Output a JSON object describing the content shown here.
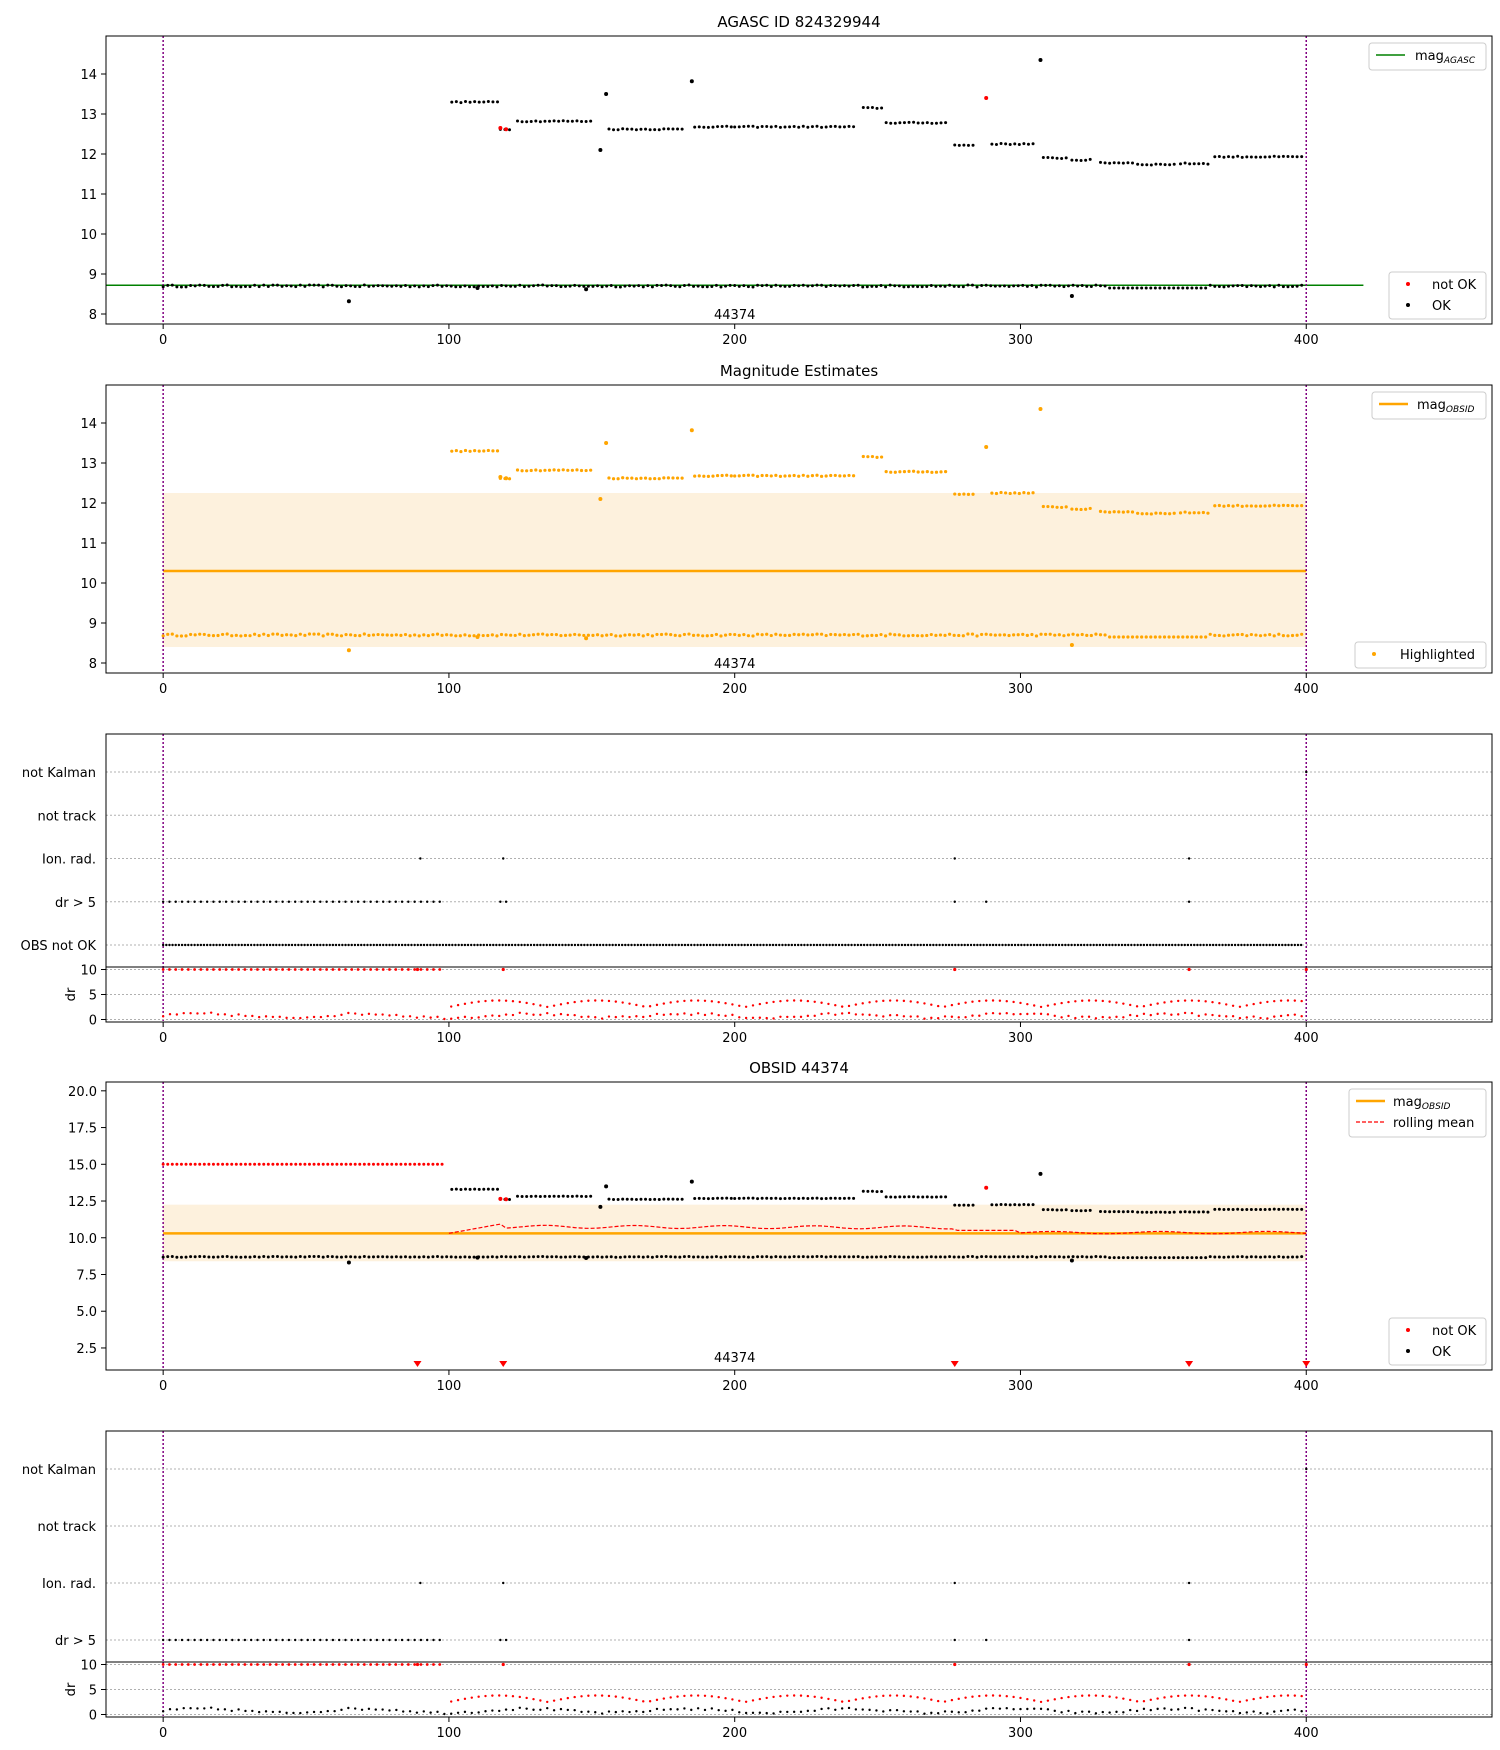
{
  "figure": {
    "title_top": "AGASC ID 824329944",
    "title_mag": "Magnitude Estimates",
    "title_obsid": "OBSID 44374"
  },
  "colors": {
    "ok": "#000000",
    "not_ok": "#ff0000",
    "agasc_line": "#008000",
    "obsid_line": "#ffa500",
    "band": "#fdf1dd",
    "vline": "#800080",
    "grid": "#b0b0b0"
  },
  "chart_data": [
    {
      "id": "agasc",
      "type": "scatter",
      "title": "AGASC ID 824329944",
      "xlim": [
        -20,
        465
      ],
      "ylim": [
        7.75,
        14.95
      ],
      "yticks": [
        8,
        9,
        10,
        11,
        12,
        13,
        14
      ],
      "xticks": [
        0,
        100,
        200,
        300,
        400
      ],
      "obsid_label": "44374",
      "vlines": [
        0,
        400
      ],
      "hlines": [
        {
          "name": "mag_AGASC",
          "y": 8.72,
          "x": [
            -20,
            420
          ]
        }
      ],
      "legend_upper": [
        "mag",
        "AGASC"
      ],
      "legend_lower": [
        "not OK",
        "OK"
      ],
      "not_ok_points": [
        [
          118,
          12.65
        ],
        [
          120,
          12.62
        ],
        [
          288,
          13.4
        ]
      ],
      "outliers": [
        [
          65,
          8.32
        ],
        [
          110,
          8.65
        ],
        [
          148,
          8.62
        ],
        [
          153,
          12.1
        ],
        [
          155,
          13.5
        ],
        [
          185,
          13.82
        ],
        [
          307,
          14.35
        ],
        [
          318,
          8.45
        ]
      ]
    },
    {
      "id": "mag_estimates",
      "type": "scatter",
      "title": "Magnitude Estimates",
      "xlim": [
        -20,
        465
      ],
      "ylim": [
        7.75,
        14.95
      ],
      "yticks": [
        8,
        9,
        10,
        11,
        12,
        13,
        14
      ],
      "xticks": [
        0,
        100,
        200,
        300,
        400
      ],
      "obsid_label": "44374",
      "vlines": [
        0,
        400
      ],
      "band": [
        8.4,
        12.25
      ],
      "mag_obsid": 10.3,
      "legend_upper": [
        "mag",
        "OBSID"
      ],
      "legend_lower": [
        "Highlighted"
      ]
    },
    {
      "id": "flags_1",
      "type": "scatter",
      "categories": [
        "not Kalman",
        "not track",
        "Ion. rad.",
        "dr > 5",
        "OBS not OK"
      ],
      "xticks": [
        0,
        100,
        200,
        300,
        400
      ],
      "ion_rad": [
        90,
        119,
        277,
        359
      ],
      "dr_gt_5_ranges": [
        [
          0,
          99
        ]
      ],
      "dr_gt_5_extra": [
        118,
        120,
        277,
        288,
        359
      ],
      "obs_not_ok_range": [
        0,
        399
      ],
      "not_kalman": [
        400
      ],
      "dr_panel": {
        "ylabel": "dr",
        "yticks": [
          0,
          5,
          10
        ],
        "ylim": [
          -0.5,
          10.5
        ]
      }
    },
    {
      "id": "obsid",
      "type": "scatter",
      "title": "OBSID 44374",
      "xlim": [
        -20,
        465
      ],
      "ylim": [
        1.0,
        20.6
      ],
      "yticks": [
        2.5,
        5.0,
        7.5,
        10.0,
        12.5,
        15.0,
        17.5,
        20.0
      ],
      "xticks": [
        0,
        100,
        200,
        300,
        400
      ],
      "obsid_label": "44374",
      "vlines": [
        0,
        400
      ],
      "band": [
        8.4,
        12.25
      ],
      "mag_obsid": 10.3,
      "not_ok_top": 15.0,
      "triangles_x": [
        89,
        119,
        277,
        359,
        400
      ],
      "legend_upper": [
        [
          "mag",
          "OBSID"
        ],
        [
          "rolling mean"
        ]
      ],
      "legend_lower": [
        "not OK",
        "OK"
      ]
    },
    {
      "id": "flags_2",
      "type": "scatter",
      "categories": [
        "not Kalman",
        "not track",
        "Ion. rad.",
        "dr > 5"
      ],
      "xticks": [
        0,
        100,
        200,
        300,
        400
      ],
      "ion_rad": [
        90,
        119,
        277,
        359
      ],
      "dr_gt_5_ranges": [
        [
          0,
          99
        ]
      ],
      "dr_gt_5_extra": [
        118,
        120,
        277,
        288,
        359
      ],
      "not_kalman": [
        400
      ],
      "dr_panel": {
        "ylabel": "dr",
        "yticks": [
          0,
          5,
          10
        ],
        "ylim": [
          -0.5,
          10.5
        ]
      }
    }
  ]
}
